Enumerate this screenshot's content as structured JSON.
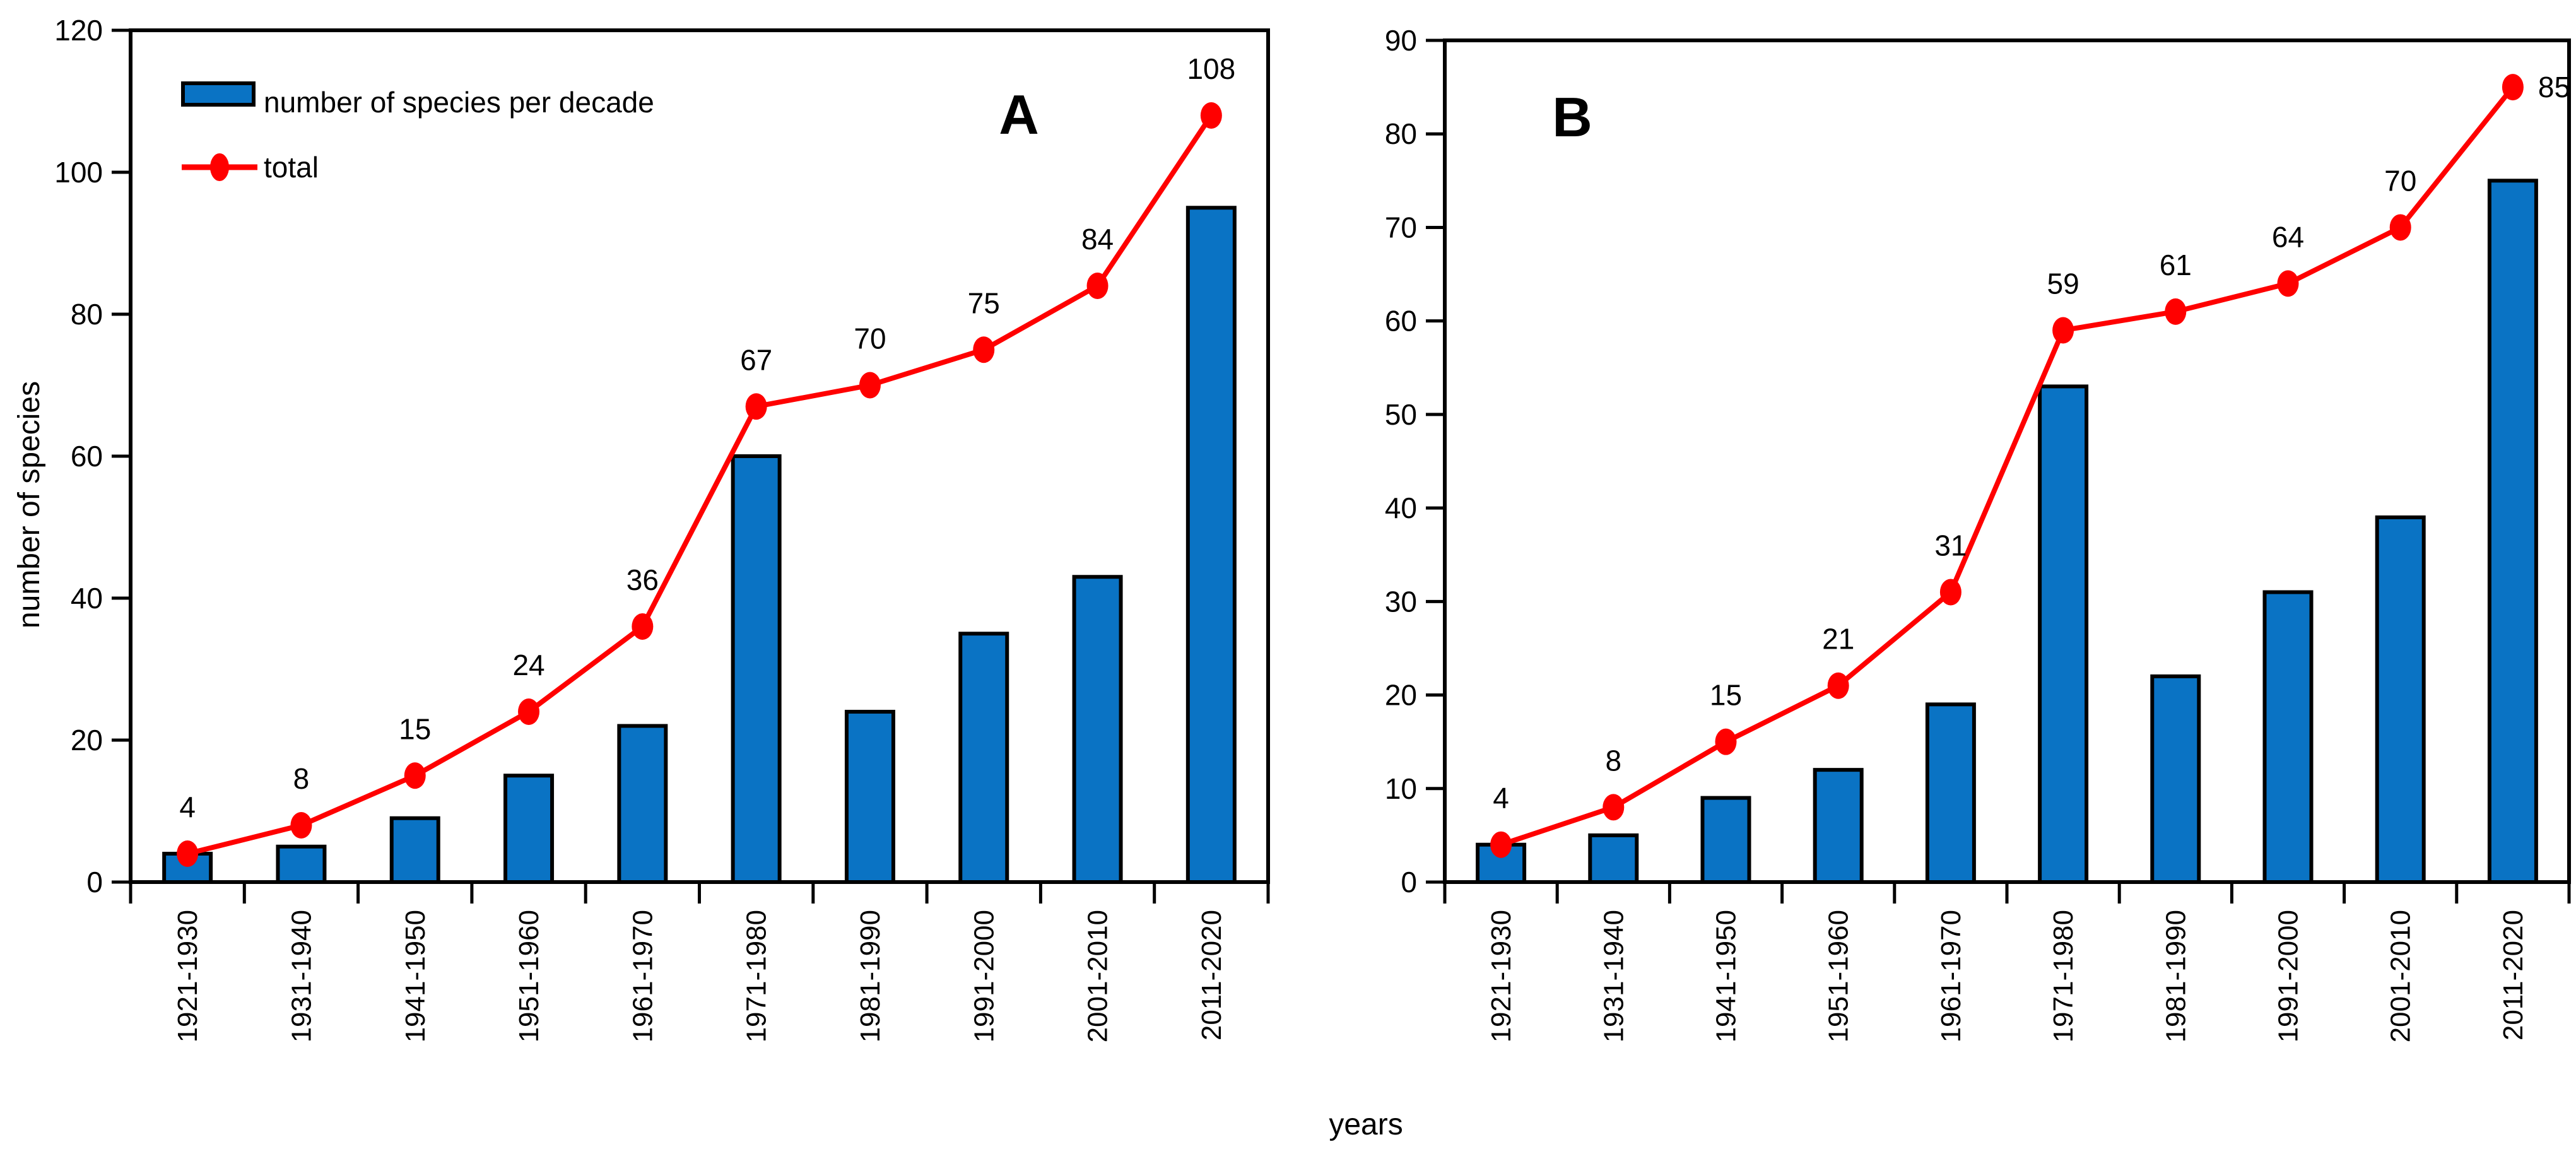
{
  "figure": {
    "xlabel": "years",
    "ylabel": "number of species",
    "panel_a_label": "A",
    "panel_b_label": "B"
  },
  "legend": {
    "bar_label": "number of species per decade",
    "line_label": "total"
  },
  "colors": {
    "bar_fill": "#0a73c4",
    "bar_border": "#000000",
    "line": "#ff0000",
    "text": "#000000",
    "frame": "#000000"
  },
  "chart_data": [
    {
      "type": "bar",
      "panel_label": "A",
      "title": "A",
      "xlabel": "years",
      "ylabel": "number of species",
      "categories": [
        "1921-1930",
        "1931-1940",
        "1941-1950",
        "1951-1960",
        "1961-1970",
        "1971-1980",
        "1981-1990",
        "1991-2000",
        "2001-2010",
        "2011-2020"
      ],
      "series": [
        {
          "name": "number of species per decade",
          "type": "bar",
          "values": [
            4,
            5,
            9,
            15,
            22,
            60,
            24,
            35,
            43,
            95
          ]
        },
        {
          "name": "total",
          "type": "line",
          "point_labels_shown": true,
          "values": [
            4,
            8,
            15,
            24,
            36,
            67,
            70,
            75,
            84,
            108
          ]
        }
      ],
      "ylim": [
        0,
        120
      ],
      "ytick_step": 20,
      "yticks": [
        0,
        20,
        40,
        60,
        80,
        100,
        120
      ],
      "grid": false,
      "legend_position": "top-left"
    },
    {
      "type": "bar",
      "panel_label": "B",
      "title": "B",
      "xlabel": "years",
      "ylabel": "",
      "categories": [
        "1921-1930",
        "1931-1940",
        "1941-1950",
        "1951-1960",
        "1961-1970",
        "1971-1980",
        "1981-1990",
        "1991-2000",
        "2001-2010",
        "2011-2020"
      ],
      "series": [
        {
          "name": "number of species per decade",
          "type": "bar",
          "values": [
            4,
            5,
            9,
            12,
            19,
            53,
            22,
            31,
            39,
            75
          ]
        },
        {
          "name": "total",
          "type": "line",
          "point_labels_shown": true,
          "values": [
            4,
            8,
            15,
            21,
            31,
            59,
            61,
            64,
            70,
            85
          ]
        }
      ],
      "ylim": [
        0,
        90
      ],
      "ytick_step": 10,
      "yticks": [
        0,
        10,
        20,
        30,
        40,
        50,
        60,
        70,
        80,
        90
      ],
      "grid": false,
      "legend_position": "none"
    }
  ]
}
